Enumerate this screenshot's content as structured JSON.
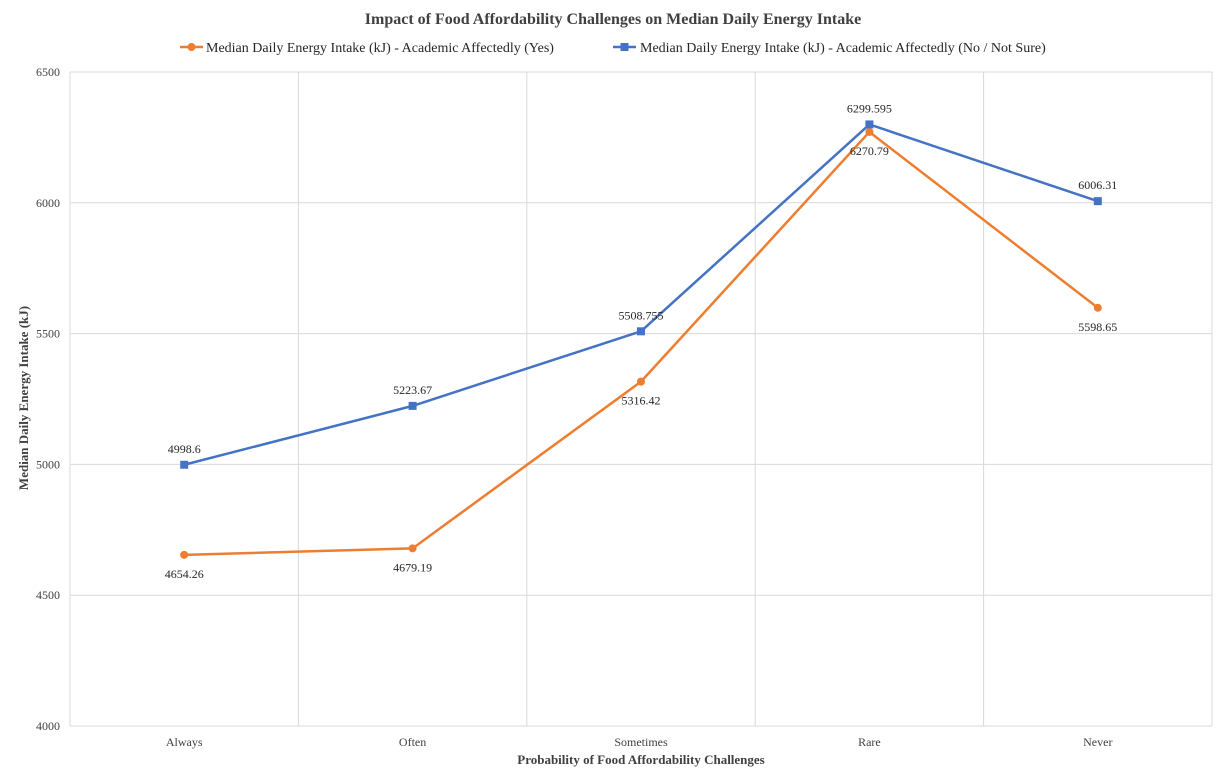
{
  "chart_data": {
    "type": "line",
    "title": "Impact of Food Affordability Challenges on Median Daily Energy Intake",
    "xlabel": "Probability of Food Affordability Challenges",
    "ylabel": "Median Daily Energy Intake (kJ)",
    "categories": [
      "Always",
      "Often",
      "Sometimes",
      "Rare",
      "Never"
    ],
    "ylim": [
      4000,
      6500
    ],
    "yticks": [
      "4000",
      "4500",
      "5000",
      "5500",
      "6000",
      "6500"
    ],
    "grid": true,
    "legend_position": "top",
    "series": [
      {
        "name": "Median Daily Energy Intake (kJ) - Academic Affectedly (Yes)",
        "values": [
          4654.26,
          4679.19,
          5316.42,
          6270.79,
          5598.65
        ],
        "labels": [
          "4654.26",
          "4679.19",
          "5316.42",
          "6270.79",
          "5598.65"
        ],
        "color": "#ED7D31",
        "marker": "circle"
      },
      {
        "name": "Median Daily Energy Intake (kJ) - Academic Affectedly (No / Not Sure)",
        "values": [
          4998.6,
          5223.67,
          5508.755,
          6299.595,
          6006.31
        ],
        "labels": [
          "4998.6",
          "5223.67",
          "5508.755",
          "6299.595",
          "6006.31"
        ],
        "color": "#4472C4",
        "marker": "square"
      }
    ]
  }
}
